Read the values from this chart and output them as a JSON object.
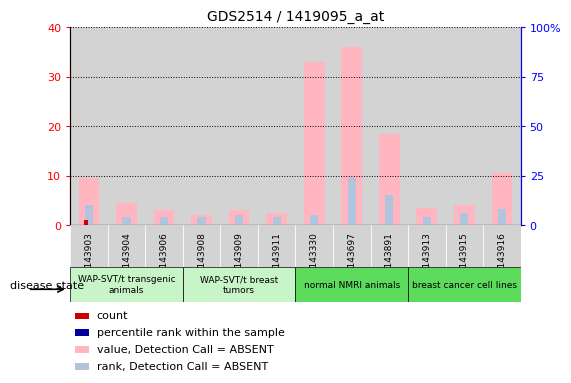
{
  "title": "GDS2514 / 1419095_a_at",
  "samples": [
    "GSM143903",
    "GSM143904",
    "GSM143906",
    "GSM143908",
    "GSM143909",
    "GSM143911",
    "GSM143330",
    "GSM143697",
    "GSM143891",
    "GSM143913",
    "GSM143915",
    "GSM143916"
  ],
  "value_absent": [
    9.5,
    4.5,
    3.0,
    2.0,
    3.0,
    2.5,
    33.0,
    36.0,
    18.5,
    3.5,
    4.0,
    10.5
  ],
  "rank_absent_pct": [
    10.0,
    4.0,
    4.0,
    4.0,
    5.0,
    4.0,
    5.0,
    24.0,
    15.0,
    4.0,
    6.0,
    8.0
  ],
  "count": [
    1,
    0,
    0,
    0,
    0,
    0,
    0,
    0,
    0,
    0,
    0,
    0
  ],
  "percentile": [
    0,
    0,
    0,
    0,
    0,
    0,
    0,
    0,
    0,
    0,
    0,
    0
  ],
  "groups": [
    {
      "label": "WAP-SVT/t transgenic\nanimals",
      "start": 0,
      "end": 3,
      "color": "#90EE90"
    },
    {
      "label": "WAP-SVT/t breast\ntumors",
      "start": 3,
      "end": 6,
      "color": "#90EE90"
    },
    {
      "label": "normal NMRI animals",
      "start": 6,
      "end": 9,
      "color": "#3CB371"
    },
    {
      "label": "breast cancer cell lines",
      "start": 9,
      "end": 12,
      "color": "#3CB371"
    }
  ],
  "ylim_left": [
    0,
    40
  ],
  "ylim_right": [
    0,
    100
  ],
  "yticks_left": [
    0,
    10,
    20,
    30,
    40
  ],
  "yticks_right": [
    0,
    25,
    50,
    75,
    100
  ],
  "color_value_absent": "#FFB6C1",
  "color_rank_absent": "#B0C4DE",
  "color_count": "#CC0000",
  "color_percentile": "#000099",
  "bg_color": "#FFFFFF",
  "tick_area_color": "#D3D3D3",
  "legend_items": [
    {
      "label": "count",
      "color": "#CC0000"
    },
    {
      "label": "percentile rank within the sample",
      "color": "#000099"
    },
    {
      "label": "value, Detection Call = ABSENT",
      "color": "#FFB6C1"
    },
    {
      "label": "rank, Detection Call = ABSENT",
      "color": "#B0C4DE"
    }
  ],
  "disease_state_label": "disease state"
}
